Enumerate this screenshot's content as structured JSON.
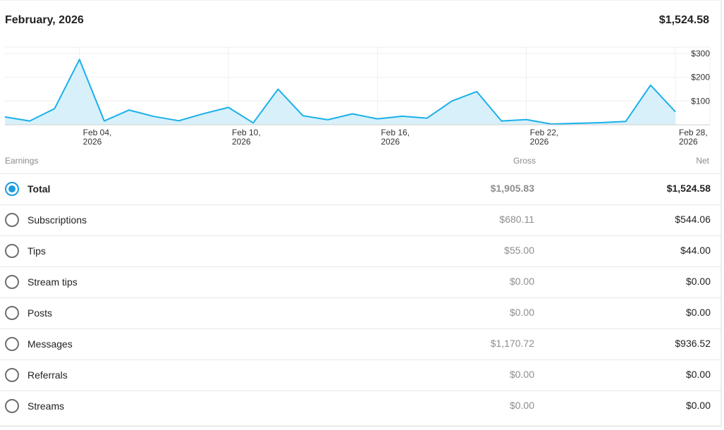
{
  "header": {
    "title": "February, 2026",
    "total": "$1,524.58"
  },
  "table": {
    "col_earnings": "Earnings",
    "col_gross": "Gross",
    "col_net": "Net",
    "rows": [
      {
        "label": "Total",
        "gross": "$1,905.83",
        "net": "$1,524.58",
        "selected": true
      },
      {
        "label": "Subscriptions",
        "gross": "$680.11",
        "net": "$544.06",
        "selected": false
      },
      {
        "label": "Tips",
        "gross": "$55.00",
        "net": "$44.00",
        "selected": false
      },
      {
        "label": "Stream tips",
        "gross": "$0.00",
        "net": "$0.00",
        "selected": false
      },
      {
        "label": "Posts",
        "gross": "$0.00",
        "net": "$0.00",
        "selected": false
      },
      {
        "label": "Messages",
        "gross": "$1,170.72",
        "net": "$936.52",
        "selected": false
      },
      {
        "label": "Referrals",
        "gross": "$0.00",
        "net": "$0.00",
        "selected": false
      },
      {
        "label": "Streams",
        "gross": "$0.00",
        "net": "$0.00",
        "selected": false
      }
    ]
  },
  "colors": {
    "accent": "#1a9be0",
    "line": "#1ab0ea",
    "fill": "#d8f0fa"
  },
  "chart_data": {
    "type": "area",
    "x": [
      "Feb 01",
      "Feb 02",
      "Feb 03",
      "Feb 04",
      "Feb 05",
      "Feb 06",
      "Feb 07",
      "Feb 08",
      "Feb 09",
      "Feb 10",
      "Feb 11",
      "Feb 12",
      "Feb 13",
      "Feb 14",
      "Feb 15",
      "Feb 16",
      "Feb 17",
      "Feb 18",
      "Feb 19",
      "Feb 20",
      "Feb 21",
      "Feb 22",
      "Feb 23",
      "Feb 24",
      "Feb 25",
      "Feb 26",
      "Feb 27",
      "Feb 28"
    ],
    "values": [
      33,
      16,
      68,
      275,
      16,
      62,
      35,
      17,
      47,
      73,
      8,
      150,
      38,
      21,
      46,
      25,
      36,
      28,
      100,
      140,
      16,
      22,
      3,
      6,
      9,
      14,
      167,
      55
    ],
    "x_tick_labels": [
      "Feb 04, 2026",
      "Feb 10, 2026",
      "Feb 16, 2026",
      "Feb 22, 2026",
      "Feb 28, 2026"
    ],
    "y_tick_labels": [
      "$100",
      "$200",
      "$300"
    ],
    "ylim": [
      0,
      300
    ],
    "grid": true
  }
}
